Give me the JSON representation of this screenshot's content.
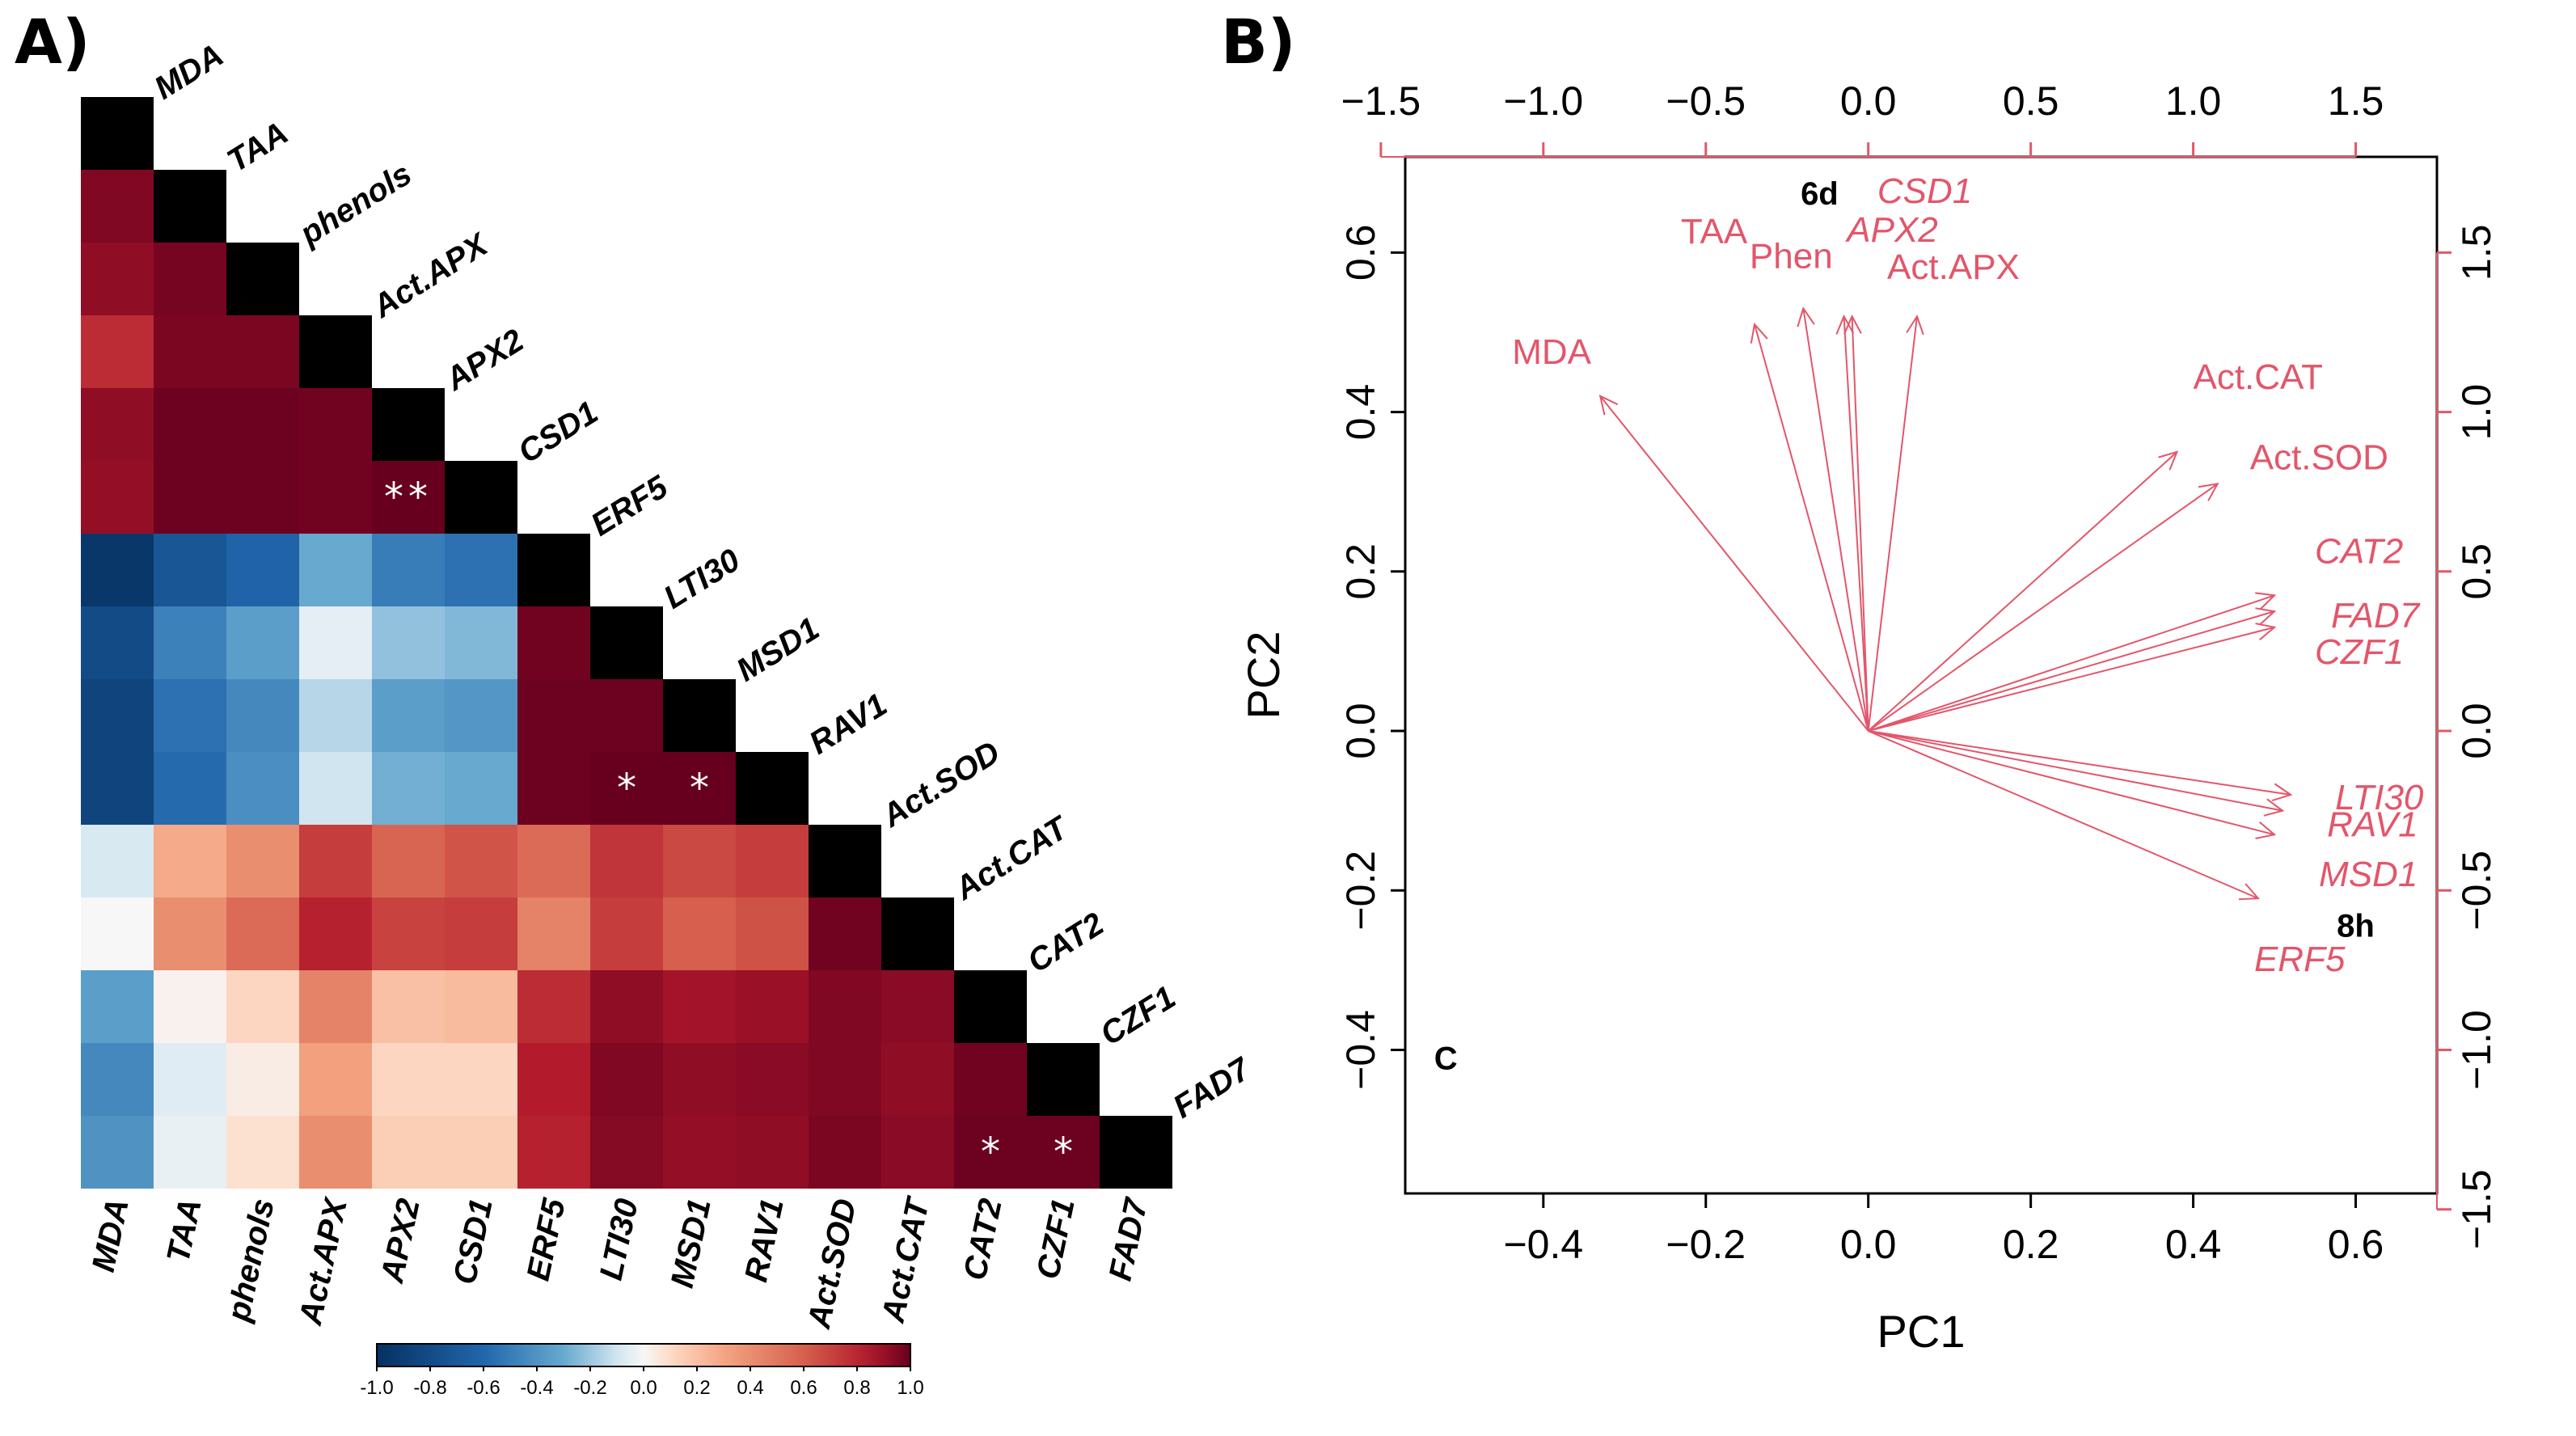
{
  "panels": {
    "a_label": "A)",
    "b_label": "B)"
  },
  "chart_data": [
    {
      "type": "heatmap",
      "title": "",
      "variables": [
        "MDA",
        "TAA",
        "phenols",
        "Act.APX",
        "APX2",
        "CSD1",
        "ERF5",
        "LTI30",
        "MSD1",
        "RAV1",
        "Act.SOD",
        "Act.CAT",
        "CAT2",
        "CZF1",
        "FAD7"
      ],
      "triangle": "lower",
      "matrix": [
        [
          1
        ],
        [
          0.95,
          1
        ],
        [
          0.92,
          0.97,
          1
        ],
        [
          0.78,
          0.96,
          0.96,
          1
        ],
        [
          0.92,
          0.99,
          0.99,
          0.98,
          1
        ],
        [
          0.91,
          0.99,
          0.99,
          0.98,
          1.0,
          1
        ],
        [
          -0.95,
          -0.72,
          -0.62,
          -0.3,
          -0.5,
          -0.55,
          1
        ],
        [
          -0.8,
          -0.48,
          -0.35,
          -0.05,
          -0.22,
          -0.25,
          0.98,
          1
        ],
        [
          -0.85,
          -0.55,
          -0.45,
          -0.15,
          -0.35,
          -0.38,
          0.99,
          0.99,
          1
        ],
        [
          -0.85,
          -0.58,
          -0.42,
          -0.1,
          -0.28,
          -0.3,
          0.99,
          1.0,
          1.0,
          1
        ],
        [
          -0.08,
          0.28,
          0.4,
          0.72,
          0.58,
          0.64,
          0.55,
          0.75,
          0.68,
          0.72,
          1
        ],
        [
          0.0,
          0.4,
          0.55,
          0.82,
          0.7,
          0.72,
          0.45,
          0.72,
          0.6,
          0.65,
          0.98,
          1
        ],
        [
          -0.35,
          0.02,
          0.12,
          0.45,
          0.2,
          0.22,
          0.78,
          0.92,
          0.88,
          0.9,
          0.95,
          0.93,
          1
        ],
        [
          -0.45,
          -0.06,
          0.04,
          0.32,
          0.12,
          0.12,
          0.84,
          0.95,
          0.92,
          0.93,
          0.95,
          0.92,
          0.98,
          1
        ],
        [
          -0.4,
          -0.04,
          0.08,
          0.4,
          0.15,
          0.15,
          0.82,
          0.94,
          0.91,
          0.92,
          0.96,
          0.93,
          0.99,
          0.99,
          1
        ]
      ],
      "significance": [
        {
          "row": 5,
          "col": 4,
          "mark": "**"
        },
        {
          "row": 9,
          "col": 7,
          "mark": "*"
        },
        {
          "row": 9,
          "col": 8,
          "mark": "*"
        },
        {
          "row": 14,
          "col": 12,
          "mark": "*"
        },
        {
          "row": 14,
          "col": 13,
          "mark": "*"
        }
      ],
      "colorbar": {
        "range": [
          -1.0,
          1.0
        ],
        "ticks": [
          "-1.0",
          "-0.8",
          "-0.6",
          "-0.4",
          "-0.2",
          "0.0",
          "0.2",
          "0.4",
          "0.6",
          "0.8",
          "1.0"
        ],
        "colors": {
          "neg": "#053061",
          "mid": "#f7f7f7",
          "pos": "#67001f"
        }
      }
    },
    {
      "type": "scatter",
      "subtype": "biplot",
      "xlabel": "PC1",
      "ylabel": "PC2",
      "xlim": [
        -0.57,
        0.7
      ],
      "ylim": [
        -0.58,
        0.72
      ],
      "x_ticks": [
        "−0.4",
        "−0.2",
        "0.0",
        "0.2",
        "0.4",
        "0.6"
      ],
      "y_ticks": [
        "−0.4",
        "−0.2",
        "0.0",
        "0.2",
        "0.4",
        "0.6"
      ],
      "top_ticks": [
        "−1.5",
        "−1.0",
        "−0.5",
        "0.0",
        "0.5",
        "1.0",
        "1.5"
      ],
      "right_ticks": [
        "−1.5",
        "−1.0",
        "−0.5",
        "0.0",
        "0.5",
        "1.0",
        "1.5"
      ],
      "secondary_scale": 0.4,
      "arrow_color": "#e3566a",
      "loadings": [
        {
          "name": "MDA",
          "x": -0.33,
          "y": 0.42,
          "italic": false
        },
        {
          "name": "TAA",
          "x": -0.14,
          "y": 0.51,
          "italic": false
        },
        {
          "name": "Phen",
          "x": -0.08,
          "y": 0.53,
          "italic": false
        },
        {
          "name": "CSD1",
          "x": -0.02,
          "y": 0.52,
          "italic": true
        },
        {
          "name": "APX2",
          "x": -0.03,
          "y": 0.52,
          "italic": true
        },
        {
          "name": "Act.APX",
          "x": 0.06,
          "y": 0.52,
          "italic": false
        },
        {
          "name": "Act.CAT",
          "x": 0.38,
          "y": 0.35,
          "italic": false
        },
        {
          "name": "Act.SOD",
          "x": 0.43,
          "y": 0.31,
          "italic": false
        },
        {
          "name": "CAT2",
          "x": 0.5,
          "y": 0.17,
          "italic": true
        },
        {
          "name": "FAD7",
          "x": 0.5,
          "y": 0.15,
          "italic": true
        },
        {
          "name": "CZF1",
          "x": 0.5,
          "y": 0.13,
          "italic": true
        },
        {
          "name": "LTI30",
          "x": 0.52,
          "y": -0.08,
          "italic": true
        },
        {
          "name": "RAV1",
          "x": 0.51,
          "y": -0.1,
          "italic": true
        },
        {
          "name": "MSD1",
          "x": 0.5,
          "y": -0.13,
          "italic": true
        },
        {
          "name": "ERF5",
          "x": 0.48,
          "y": -0.21,
          "italic": true
        }
      ],
      "observations": [
        {
          "name": "6d",
          "x": -0.06,
          "y": 0.66
        },
        {
          "name": "8h",
          "x": 0.6,
          "y": -0.25
        },
        {
          "name": "C",
          "x": -0.52,
          "y": -0.41
        }
      ]
    }
  ]
}
